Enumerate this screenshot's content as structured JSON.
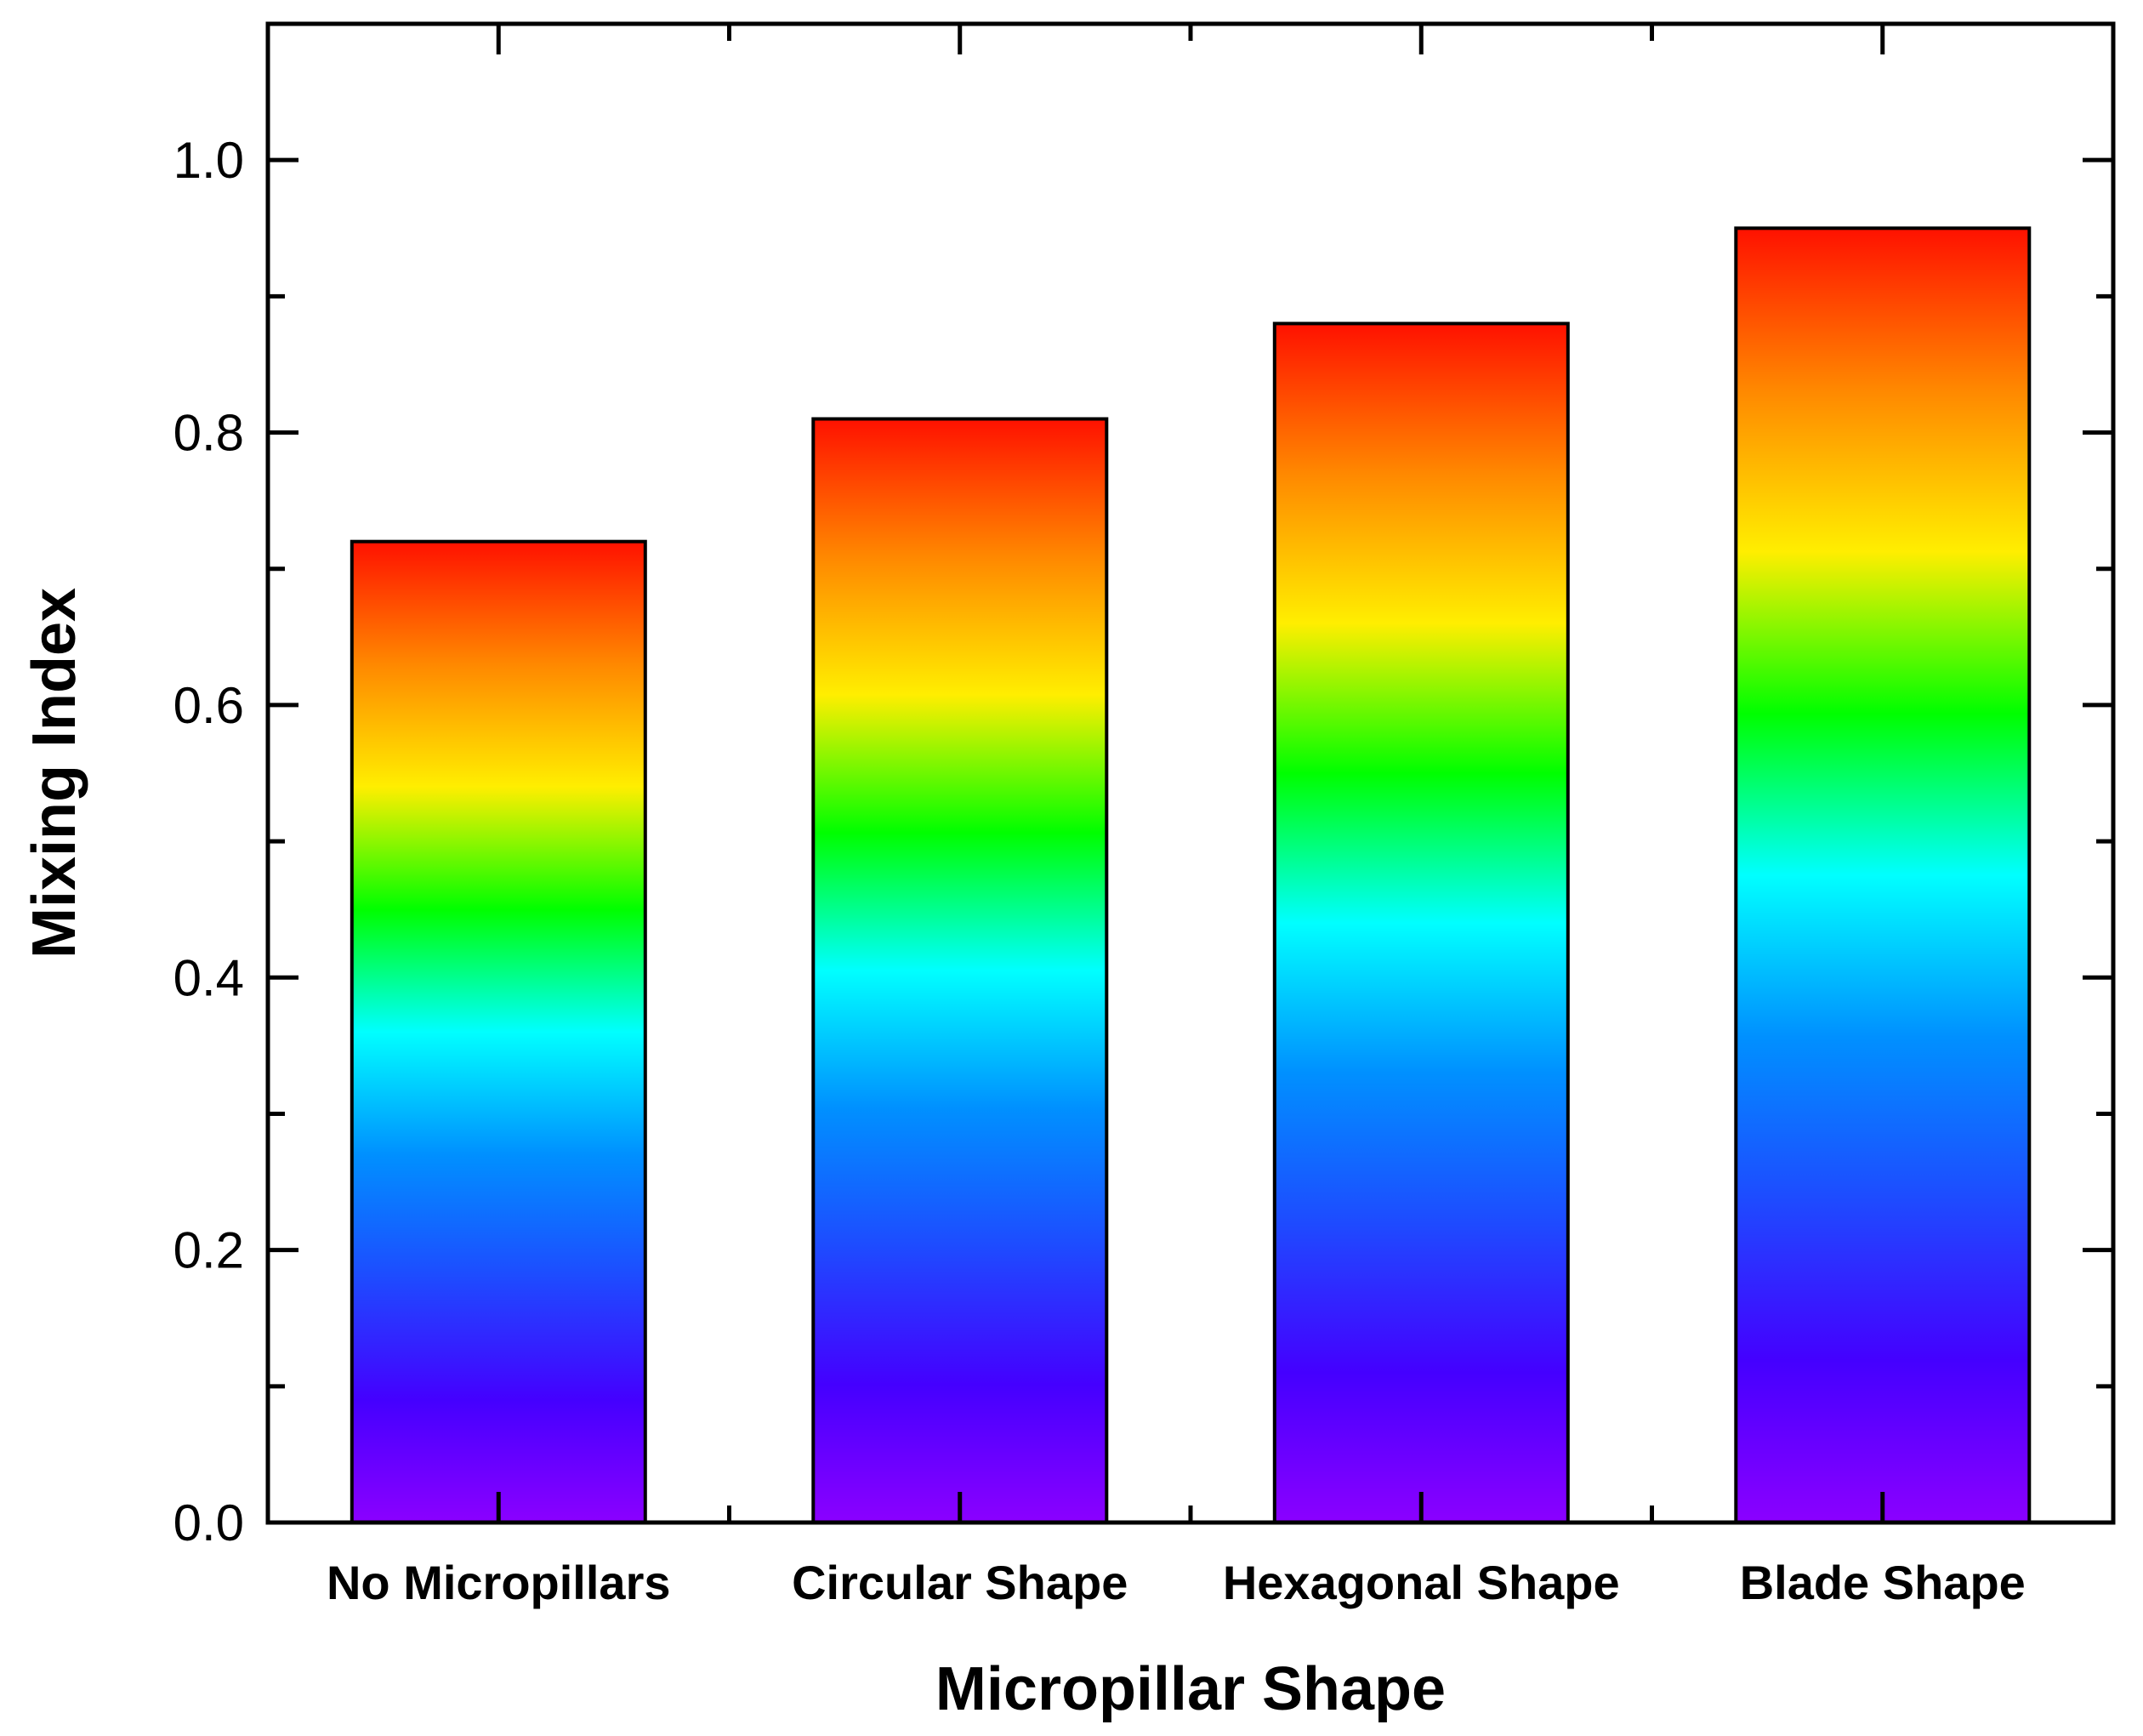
{
  "chart_data": {
    "type": "bar",
    "categories": [
      "No Micropillars",
      "Circular Shape",
      "Hexagonal Shape",
      "Blade Shape"
    ],
    "values": [
      0.72,
      0.81,
      0.88,
      0.95
    ],
    "title": "",
    "xlabel": "Micropillar Shape",
    "ylabel": "Mixing Index",
    "ylim": [
      0,
      1.1
    ],
    "yticks": [
      0.0,
      0.2,
      0.4,
      0.6,
      0.8,
      1.0
    ],
    "ytick_labels": [
      "0.0",
      "0.2",
      "0.4",
      "0.6",
      "0.8",
      "1.0"
    ],
    "grid": false,
    "legend": "none",
    "bar_fill": "vertical rainbow gradient (violet at base to red at top)",
    "gradient_colors": [
      "#8b00ff",
      "#4400ff",
      "#1e4bff",
      "#0090ff",
      "#00ffff",
      "#00ff00",
      "#ffee00",
      "#ff8800",
      "#ff1100"
    ],
    "axis_color": "#000000"
  }
}
